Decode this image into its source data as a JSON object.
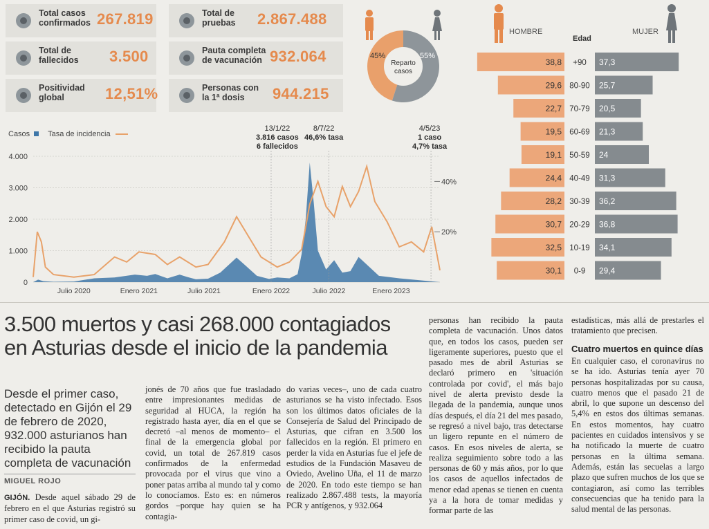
{
  "stats": [
    {
      "label_1": "Total casos",
      "label_2": "confirmados",
      "value": "267.819",
      "icon": "virus-icon"
    },
    {
      "label_1": "Total de",
      "label_2": "pruebas",
      "value": "2.867.488",
      "icon": "test-tube-icon"
    },
    {
      "label_1": "Total de",
      "label_2": "fallecidos",
      "value": "3.500",
      "icon": "tombstone-icon"
    },
    {
      "label_1": "Pauta completa",
      "label_2": "de vacunación",
      "value": "932.064",
      "icon": "syringes-icon"
    },
    {
      "label_1": "Positividad",
      "label_2": "global",
      "value": "12,51%",
      "icon": "percent-icon"
    },
    {
      "label_1": "Personas con",
      "label_2": "la 1ª dosis",
      "value": "944.215",
      "icon": "syringe-icon"
    }
  ],
  "donut": {
    "title_1": "Reparto",
    "title_2": "casos",
    "hombre_pct": "45%",
    "mujer_pct": "55%",
    "hombre": 45,
    "mujer": 55,
    "color_hombre": "#e9a06b",
    "color_mujer": "#8e959a"
  },
  "pyramid": {
    "hombre_label": "HOMBRE",
    "mujer_label": "MUJER",
    "edad_label": "Edad",
    "rows": [
      {
        "age": "+90",
        "h": "38,8",
        "m": "37,3",
        "hv": 38.8,
        "mv": 37.3
      },
      {
        "age": "80-90",
        "h": "29,6",
        "m": "25,7",
        "hv": 29.6,
        "mv": 25.7
      },
      {
        "age": "70-79",
        "h": "22,7",
        "m": "20,5",
        "hv": 22.7,
        "mv": 20.5
      },
      {
        "age": "60-69",
        "h": "19,5",
        "m": "21,3",
        "hv": 19.5,
        "mv": 21.3
      },
      {
        "age": "50-59",
        "h": "19,1",
        "m": "24",
        "hv": 19.1,
        "mv": 24
      },
      {
        "age": "40-49",
        "h": "24,4",
        "m": "31,3",
        "hv": 24.4,
        "mv": 31.3
      },
      {
        "age": "30-39",
        "h": "28,2",
        "m": "36,2",
        "hv": 28.2,
        "mv": 36.2
      },
      {
        "age": "20-29",
        "h": "30,7",
        "m": "36,8",
        "hv": 30.7,
        "mv": 36.8
      },
      {
        "age": "10-19",
        "h": "32,5",
        "m": "34,1",
        "hv": 32.5,
        "mv": 34.1
      },
      {
        "age": "0-9",
        "h": "30,1",
        "m": "29,4",
        "hv": 30.1,
        "mv": 29.4
      }
    ]
  },
  "chart_data": {
    "type": "area",
    "legend_casos": "Casos",
    "legend_tasa": "Tasa de incidencia",
    "ylim": [
      0,
      4000
    ],
    "y2lim": [
      0,
      50
    ],
    "y_ticks": [
      "4.000",
      "3.000",
      "2.000",
      "1.000",
      "0"
    ],
    "y2_ticks": [
      "40%",
      "20%"
    ],
    "x_ticks": [
      "Julio 2020",
      "Enero 2021",
      "Julio 2021",
      "Enero 2022",
      "Julio 2022",
      "Enero 2023"
    ],
    "annotations": [
      {
        "l1": "13/1/22",
        "l2": "3.816 casos",
        "l3": "6 fallecidos"
      },
      {
        "l1": "8/7/22",
        "l2": "46,6% tasa"
      },
      {
        "l1": "4/5/23",
        "l2": "1 caso",
        "l3": "4,7% tasa"
      }
    ],
    "cases_x": [
      0,
      0.012,
      0.025,
      0.05,
      0.1,
      0.15,
      0.2,
      0.25,
      0.28,
      0.3,
      0.33,
      0.36,
      0.38,
      0.4,
      0.43,
      0.46,
      0.5,
      0.52,
      0.55,
      0.58,
      0.6,
      0.63,
      0.65,
      0.66,
      0.67,
      0.68,
      0.69,
      0.7,
      0.72,
      0.74,
      0.76,
      0.78,
      0.8,
      0.85,
      0.9,
      0.95,
      1.0
    ],
    "cases_y": [
      0,
      80,
      30,
      10,
      20,
      120,
      150,
      240,
      200,
      260,
      120,
      240,
      160,
      90,
      110,
      300,
      780,
      550,
      200,
      100,
      150,
      120,
      250,
      900,
      2000,
      3800,
      2500,
      1000,
      400,
      700,
      300,
      350,
      800,
      200,
      120,
      60,
      1
    ],
    "tasa_x": [
      0,
      0.01,
      0.02,
      0.03,
      0.05,
      0.1,
      0.15,
      0.2,
      0.23,
      0.26,
      0.3,
      0.33,
      0.36,
      0.4,
      0.43,
      0.47,
      0.5,
      0.53,
      0.56,
      0.6,
      0.63,
      0.66,
      0.68,
      0.7,
      0.72,
      0.74,
      0.76,
      0.78,
      0.8,
      0.82,
      0.84,
      0.87,
      0.9,
      0.93,
      0.96,
      0.98,
      1.0
    ],
    "tasa_y": [
      2,
      20,
      16,
      6,
      3,
      2,
      3,
      10,
      8,
      12,
      11,
      7,
      10,
      6,
      7,
      16,
      26,
      18,
      10,
      6,
      8,
      13,
      31,
      40,
      30,
      26,
      38,
      30,
      36,
      46,
      32,
      24,
      14,
      16,
      12,
      22,
      4.7
    ]
  },
  "article": {
    "headline_1": "3.500 muertos y casi 268.000 contagiados",
    "headline_2": "en Asturias desde el inicio de la pandemia",
    "lede": "Desde el primer caso, detectado en Gijón el 29 de febrero de 2020, 932.000 asturianos han recibido la pauta completa de vacunación",
    "byline": "MIGUEL ROJO",
    "col1_place": "GIJÓN.",
    "col1": "Desde aquel sábado 29 de febrero en el que Asturias registró su primer caso de covid, un gi-",
    "col2": "jonés de 70 años que fue trasladado entre impresionantes medidas de seguridad al HUCA, la región ha registrado hasta ayer, día en el que se decretó –al menos de momento– el final de la emergencia global por covid, un total de 267.819 casos confirmados de la enfermedad provocada por el virus que vino a poner patas arriba al mundo tal y como lo conocíamos. Esto es: en números gordos –porque hay quien se ha contagia-",
    "col3": "do varias veces–, uno de cada cuatro asturianos se ha visto infectado. Esos son los últimos datos oficiales de la Consejería de Salud del Principado de Asturias, que cifran en 3.500 los fallecidos en la región. El primero en perder la vida en Asturias fue el jefe de estudios de la Fundación Masaveu de Oviedo, Avelino Uña, el 11 de marzo de 2020. En todo este tiempo se han realizado 2.867.488 tests, la mayoría PCR y antígenos, y 932.064",
    "col4": "personas han recibido la pauta completa de vacunación. Unos datos que, en todos los casos, pueden ser ligeramente superiores, puesto que el pasado mes de abril Asturias se declaró primero en 'situación controlada por covid', el más bajo nivel de alerta previsto desde la llegada de la pandemia, aunque unos días después, el día 21 del mes pasado, se regresó a nivel bajo, tras detectarse un ligero repunte en el número de casos. En esos niveles de alerta, se realiza seguimiento sobre todo a las personas de 60 y más años, por lo que los casos de aquellos infectados de menor edad apenas se tienen en cuenta ya a la hora de tomar medidas y formar parte de las",
    "col5_top": "estadísticas, más allá de prestarles el tratamiento que precisen.",
    "subhead": "Cuatro muertos en quince días",
    "col5": "En cualquier caso, el coronavirus no se ha ido. Asturias tenía ayer 70 personas hospitalizadas por su causa, cuatro menos que el pasado 21 de abril, lo que supone un descenso del 5,4% en estos dos últimas semanas. En estos momentos, hay cuatro pacientes en cuidados intensivos y se ha notificado la muerte de cuatro personas en la última semana. Además, están las secuelas a largo plazo que sufren muchos de los que se contagiaron, así como las terribles consecuencias que ha tenido para la salud mental de las personas."
  }
}
